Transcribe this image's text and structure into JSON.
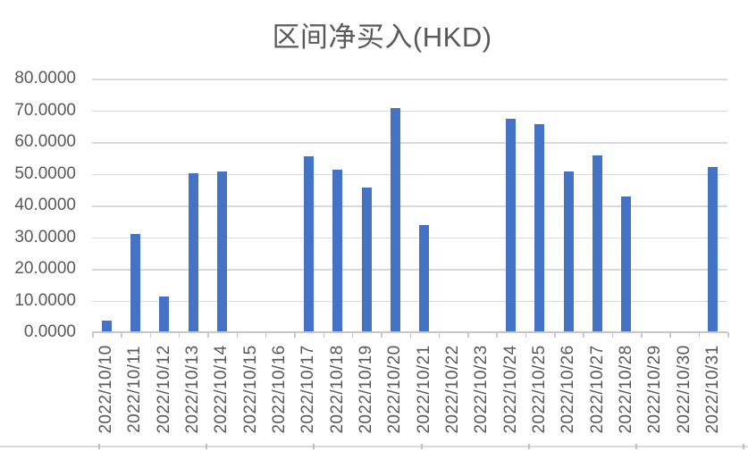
{
  "chart_data": {
    "type": "bar",
    "title": "区间净买入(HKD)",
    "categories": [
      "2022/10/10",
      "2022/10/11",
      "2022/10/12",
      "2022/10/13",
      "2022/10/14",
      "2022/10/15",
      "2022/10/16",
      "2022/10/17",
      "2022/10/18",
      "2022/10/19",
      "2022/10/20",
      "2022/10/21",
      "2022/10/22",
      "2022/10/23",
      "2022/10/24",
      "2022/10/25",
      "2022/10/26",
      "2022/10/27",
      "2022/10/28",
      "2022/10/29",
      "2022/10/30",
      "2022/10/31"
    ],
    "values": [
      3.8,
      30.9,
      11.3,
      50.2,
      50.6,
      0,
      0,
      55.6,
      51.3,
      45.6,
      70.8,
      33.8,
      0,
      0,
      67.3,
      65.5,
      50.7,
      55.9,
      42.8,
      0,
      0,
      52.2
    ],
    "xlabel": "",
    "ylabel": "",
    "ylim": [
      0,
      80
    ],
    "ytick_step": 10,
    "ytick_labels": [
      "0.0000",
      "10.0000",
      "20.0000",
      "30.0000",
      "40.0000",
      "50.0000",
      "60.0000",
      "70.0000",
      "80.0000"
    ],
    "grid": true,
    "legend_position": "none",
    "bar_color": "#4472C4",
    "gridline_color": "#D9D9D9",
    "axis_line_color": "#C6C6C6",
    "text_color": "#595959"
  }
}
